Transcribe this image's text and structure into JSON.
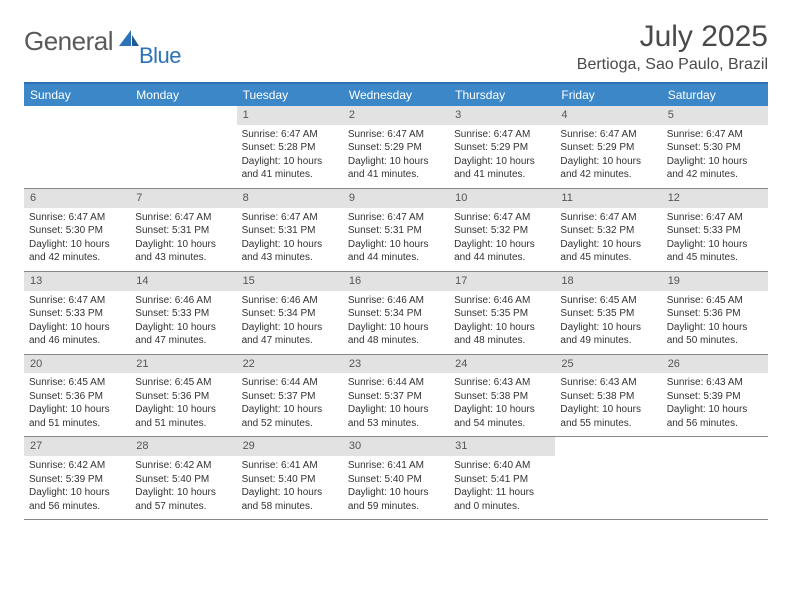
{
  "logo": {
    "text1": "General",
    "text2": "Blue",
    "color": "#2b72b8",
    "grey": "#5a5a5a"
  },
  "title": "July 2025",
  "location": "Bertioga, Sao Paulo, Brazil",
  "calendar": {
    "header_bg": "#3b87c8",
    "header_fg": "#ffffff",
    "daynum_bg": "#e2e2e2",
    "border_color": "#888888",
    "top_border": "#2b72b8",
    "day_names": [
      "Sunday",
      "Monday",
      "Tuesday",
      "Wednesday",
      "Thursday",
      "Friday",
      "Saturday"
    ],
    "weeks": [
      [
        null,
        null,
        {
          "n": "1",
          "sr": "6:47 AM",
          "ss": "5:28 PM",
          "dl": "10 hours and 41 minutes."
        },
        {
          "n": "2",
          "sr": "6:47 AM",
          "ss": "5:29 PM",
          "dl": "10 hours and 41 minutes."
        },
        {
          "n": "3",
          "sr": "6:47 AM",
          "ss": "5:29 PM",
          "dl": "10 hours and 41 minutes."
        },
        {
          "n": "4",
          "sr": "6:47 AM",
          "ss": "5:29 PM",
          "dl": "10 hours and 42 minutes."
        },
        {
          "n": "5",
          "sr": "6:47 AM",
          "ss": "5:30 PM",
          "dl": "10 hours and 42 minutes."
        }
      ],
      [
        {
          "n": "6",
          "sr": "6:47 AM",
          "ss": "5:30 PM",
          "dl": "10 hours and 42 minutes."
        },
        {
          "n": "7",
          "sr": "6:47 AM",
          "ss": "5:31 PM",
          "dl": "10 hours and 43 minutes."
        },
        {
          "n": "8",
          "sr": "6:47 AM",
          "ss": "5:31 PM",
          "dl": "10 hours and 43 minutes."
        },
        {
          "n": "9",
          "sr": "6:47 AM",
          "ss": "5:31 PM",
          "dl": "10 hours and 44 minutes."
        },
        {
          "n": "10",
          "sr": "6:47 AM",
          "ss": "5:32 PM",
          "dl": "10 hours and 44 minutes."
        },
        {
          "n": "11",
          "sr": "6:47 AM",
          "ss": "5:32 PM",
          "dl": "10 hours and 45 minutes."
        },
        {
          "n": "12",
          "sr": "6:47 AM",
          "ss": "5:33 PM",
          "dl": "10 hours and 45 minutes."
        }
      ],
      [
        {
          "n": "13",
          "sr": "6:47 AM",
          "ss": "5:33 PM",
          "dl": "10 hours and 46 minutes."
        },
        {
          "n": "14",
          "sr": "6:46 AM",
          "ss": "5:33 PM",
          "dl": "10 hours and 47 minutes."
        },
        {
          "n": "15",
          "sr": "6:46 AM",
          "ss": "5:34 PM",
          "dl": "10 hours and 47 minutes."
        },
        {
          "n": "16",
          "sr": "6:46 AM",
          "ss": "5:34 PM",
          "dl": "10 hours and 48 minutes."
        },
        {
          "n": "17",
          "sr": "6:46 AM",
          "ss": "5:35 PM",
          "dl": "10 hours and 48 minutes."
        },
        {
          "n": "18",
          "sr": "6:45 AM",
          "ss": "5:35 PM",
          "dl": "10 hours and 49 minutes."
        },
        {
          "n": "19",
          "sr": "6:45 AM",
          "ss": "5:36 PM",
          "dl": "10 hours and 50 minutes."
        }
      ],
      [
        {
          "n": "20",
          "sr": "6:45 AM",
          "ss": "5:36 PM",
          "dl": "10 hours and 51 minutes."
        },
        {
          "n": "21",
          "sr": "6:45 AM",
          "ss": "5:36 PM",
          "dl": "10 hours and 51 minutes."
        },
        {
          "n": "22",
          "sr": "6:44 AM",
          "ss": "5:37 PM",
          "dl": "10 hours and 52 minutes."
        },
        {
          "n": "23",
          "sr": "6:44 AM",
          "ss": "5:37 PM",
          "dl": "10 hours and 53 minutes."
        },
        {
          "n": "24",
          "sr": "6:43 AM",
          "ss": "5:38 PM",
          "dl": "10 hours and 54 minutes."
        },
        {
          "n": "25",
          "sr": "6:43 AM",
          "ss": "5:38 PM",
          "dl": "10 hours and 55 minutes."
        },
        {
          "n": "26",
          "sr": "6:43 AM",
          "ss": "5:39 PM",
          "dl": "10 hours and 56 minutes."
        }
      ],
      [
        {
          "n": "27",
          "sr": "6:42 AM",
          "ss": "5:39 PM",
          "dl": "10 hours and 56 minutes."
        },
        {
          "n": "28",
          "sr": "6:42 AM",
          "ss": "5:40 PM",
          "dl": "10 hours and 57 minutes."
        },
        {
          "n": "29",
          "sr": "6:41 AM",
          "ss": "5:40 PM",
          "dl": "10 hours and 58 minutes."
        },
        {
          "n": "30",
          "sr": "6:41 AM",
          "ss": "5:40 PM",
          "dl": "10 hours and 59 minutes."
        },
        {
          "n": "31",
          "sr": "6:40 AM",
          "ss": "5:41 PM",
          "dl": "11 hours and 0 minutes."
        },
        null,
        null
      ]
    ],
    "labels": {
      "sunrise": "Sunrise:",
      "sunset": "Sunset:",
      "daylight": "Daylight:"
    }
  }
}
